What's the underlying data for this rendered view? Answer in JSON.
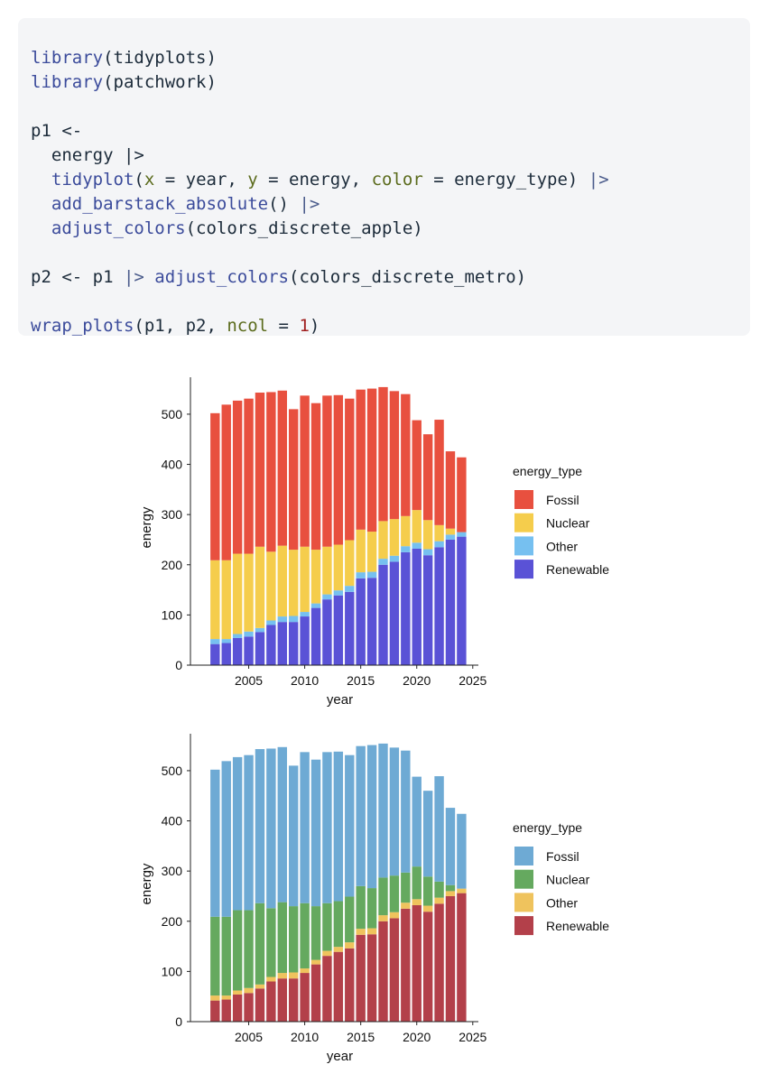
{
  "code": {
    "l1": {
      "fn": "library",
      "rest": "(tidyplots)"
    },
    "l2": {
      "fn": "library",
      "rest": "(patchwork)"
    },
    "l3": {
      "text": "p1 <-"
    },
    "l4": {
      "text": "  energy |>"
    },
    "l5": {
      "fn": "tidyplot",
      "open": "(",
      "a1": "x",
      "e1": " = year, ",
      "a2": "y",
      "e2": " = energy, ",
      "a3": "color",
      "e3": " = energy_type) ",
      "pipe": "|>"
    },
    "l6": {
      "fn": "add_barstack_absolute",
      "rest": "() ",
      "pipe": "|>"
    },
    "l7": {
      "fn": "adjust_colors",
      "rest": "(colors_discrete_apple)"
    },
    "l8": {
      "pre": "p2 <- p1 ",
      "pipe": "|>",
      "fn": " adjust_colors",
      "rest": "(colors_discrete_metro)"
    },
    "l9": {
      "fn": "wrap_plots",
      "open": "(p1, p2, ",
      "arg": "ncol",
      "eq": " = ",
      "num": "1",
      "close": ")"
    }
  },
  "chart_data": [
    {
      "type": "bar",
      "stacked": true,
      "xlabel": "year",
      "ylabel": "energy",
      "legend_title": "energy_type",
      "legend_position": "right",
      "x_ticks": [
        2005,
        2010,
        2015,
        2020,
        2025
      ],
      "y_ticks": [
        0,
        100,
        200,
        300,
        400,
        500
      ],
      "xlim": [
        1999.8,
        2025.5
      ],
      "ylim": [
        0,
        570
      ],
      "x": [
        2002,
        2003,
        2004,
        2005,
        2006,
        2007,
        2008,
        2009,
        2010,
        2011,
        2012,
        2013,
        2014,
        2015,
        2016,
        2017,
        2018,
        2019,
        2020,
        2021,
        2022,
        2023,
        2024
      ],
      "series": [
        {
          "name": "Renewable",
          "color": "#5a52d6",
          "values": [
            42,
            44,
            54,
            57,
            66,
            80,
            86,
            86,
            97,
            114,
            131,
            139,
            146,
            173,
            174,
            200,
            206,
            225,
            232,
            219,
            235,
            250,
            256
          ]
        },
        {
          "name": "Other",
          "color": "#76c0f0",
          "values": [
            10,
            8,
            8,
            10,
            8,
            9,
            11,
            12,
            9,
            9,
            10,
            10,
            12,
            12,
            12,
            12,
            12,
            12,
            12,
            12,
            12,
            10,
            9
          ]
        },
        {
          "name": "Nuclear",
          "color": "#f5cd4c",
          "values": [
            157,
            157,
            160,
            155,
            162,
            137,
            141,
            132,
            130,
            107,
            95,
            91,
            91,
            85,
            80,
            75,
            73,
            60,
            65,
            58,
            32,
            12,
            0
          ]
        },
        {
          "name": "Fossil",
          "color": "#e8503f",
          "values": [
            293,
            310,
            305,
            309,
            307,
            318,
            309,
            280,
            301,
            292,
            301,
            298,
            282,
            279,
            285,
            267,
            255,
            243,
            179,
            171,
            210,
            154,
            149
          ]
        }
      ]
    },
    {
      "type": "bar",
      "stacked": true,
      "xlabel": "year",
      "ylabel": "energy",
      "legend_title": "energy_type",
      "legend_position": "right",
      "x_ticks": [
        2005,
        2010,
        2015,
        2020,
        2025
      ],
      "y_ticks": [
        0,
        100,
        200,
        300,
        400,
        500
      ],
      "xlim": [
        1999.8,
        2025.5
      ],
      "ylim": [
        0,
        570
      ],
      "x": [
        2002,
        2003,
        2004,
        2005,
        2006,
        2007,
        2008,
        2009,
        2010,
        2011,
        2012,
        2013,
        2014,
        2015,
        2016,
        2017,
        2018,
        2019,
        2020,
        2021,
        2022,
        2023,
        2024
      ],
      "series": [
        {
          "name": "Renewable",
          "color": "#b3404a",
          "values": [
            42,
            44,
            54,
            57,
            66,
            80,
            86,
            86,
            97,
            114,
            131,
            139,
            146,
            173,
            174,
            200,
            206,
            225,
            232,
            219,
            235,
            250,
            256
          ]
        },
        {
          "name": "Other",
          "color": "#efc35d",
          "values": [
            10,
            8,
            8,
            10,
            8,
            9,
            11,
            12,
            9,
            9,
            10,
            10,
            12,
            12,
            12,
            12,
            12,
            12,
            12,
            12,
            12,
            10,
            9
          ]
        },
        {
          "name": "Nuclear",
          "color": "#65a95f",
          "values": [
            157,
            157,
            160,
            155,
            162,
            137,
            141,
            132,
            130,
            107,
            95,
            91,
            91,
            85,
            80,
            75,
            73,
            60,
            65,
            58,
            32,
            12,
            0
          ]
        },
        {
          "name": "Fossil",
          "color": "#6eaad4",
          "values": [
            293,
            310,
            305,
            309,
            307,
            318,
            309,
            280,
            301,
            292,
            301,
            298,
            282,
            279,
            285,
            267,
            255,
            243,
            179,
            171,
            210,
            154,
            149
          ]
        }
      ]
    }
  ]
}
